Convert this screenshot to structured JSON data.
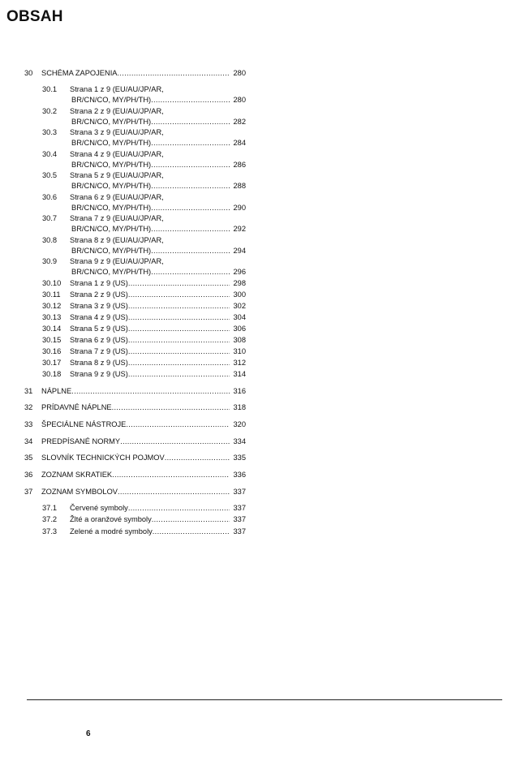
{
  "title": "OBSAH",
  "entries": [
    {
      "num": "30",
      "text": "SCHÉMA ZAPOJENIA",
      "page": "280",
      "level": 1
    },
    {
      "num": "30.1",
      "text": "Strana 1 z 9 (EU/AU/JP/AR,",
      "text2": "BR/CN/CO, MY/PH/TH)",
      "page": "280",
      "level": 2
    },
    {
      "num": "30.2",
      "text": "Strana 2 z 9 (EU/AU/JP/AR,",
      "text2": "BR/CN/CO, MY/PH/TH)",
      "page": "282",
      "level": 2
    },
    {
      "num": "30.3",
      "text": "Strana 3 z 9 (EU/AU/JP/AR,",
      "text2": "BR/CN/CO, MY/PH/TH)",
      "page": "284",
      "level": 2
    },
    {
      "num": "30.4",
      "text": "Strana 4 z 9 (EU/AU/JP/AR,",
      "text2": "BR/CN/CO, MY/PH/TH)",
      "page": "286",
      "level": 2
    },
    {
      "num": "30.5",
      "text": "Strana 5 z 9 (EU/AU/JP/AR,",
      "text2": "BR/CN/CO, MY/PH/TH)",
      "page": "288",
      "level": 2
    },
    {
      "num": "30.6",
      "text": "Strana 6 z 9 (EU/AU/JP/AR,",
      "text2": "BR/CN/CO, MY/PH/TH)",
      "page": "290",
      "level": 2
    },
    {
      "num": "30.7",
      "text": "Strana 7 z 9 (EU/AU/JP/AR,",
      "text2": "BR/CN/CO, MY/PH/TH)",
      "page": "292",
      "level": 2
    },
    {
      "num": "30.8",
      "text": "Strana 8 z 9 (EU/AU/JP/AR,",
      "text2": "BR/CN/CO, MY/PH/TH)",
      "page": "294",
      "level": 2
    },
    {
      "num": "30.9",
      "text": "Strana 9 z 9 (EU/AU/JP/AR,",
      "text2": "BR/CN/CO, MY/PH/TH)",
      "page": "296",
      "level": 2
    },
    {
      "num": "30.10",
      "text": "Strana 1 z 9 (US)",
      "page": "298",
      "level": 2
    },
    {
      "num": "30.11",
      "text": "Strana 2 z 9 (US)",
      "page": "300",
      "level": 2
    },
    {
      "num": "30.12",
      "text": "Strana 3 z 9 (US)",
      "page": "302",
      "level": 2
    },
    {
      "num": "30.13",
      "text": "Strana 4 z 9 (US)",
      "page": "304",
      "level": 2
    },
    {
      "num": "30.14",
      "text": "Strana 5 z 9 (US)",
      "page": "306",
      "level": 2
    },
    {
      "num": "30.15",
      "text": "Strana 6 z 9 (US)",
      "page": "308",
      "level": 2
    },
    {
      "num": "30.16",
      "text": "Strana 7 z 9 (US)",
      "page": "310",
      "level": 2
    },
    {
      "num": "30.17",
      "text": "Strana 8 z 9 (US)",
      "page": "312",
      "level": 2
    },
    {
      "num": "30.18",
      "text": "Strana 9 z 9 (US)",
      "page": "314",
      "level": 2
    },
    {
      "num": "31",
      "text": "NÁPLNE",
      "page": "316",
      "level": 1
    },
    {
      "num": "32",
      "text": "PRÍDAVNÉ NÁPLNE",
      "page": "318",
      "level": 1
    },
    {
      "num": "33",
      "text": "ŠPECIÁLNE NÁSTROJE",
      "page": "320",
      "level": 1
    },
    {
      "num": "34",
      "text": "PREDPÍSANÉ NORMY",
      "page": "334",
      "level": 1
    },
    {
      "num": "35",
      "text": "SLOVNÍK  TECHNICKÝCH  POJMOV",
      "page": "335",
      "level": 1
    },
    {
      "num": "36",
      "text": "ZOZNAM  SKRATIEK",
      "page": "336",
      "level": 1
    },
    {
      "num": "37",
      "text": "ZOZNAM  SYMBOLOV",
      "page": "337",
      "level": 1
    },
    {
      "num": "37.1",
      "text": "Červené symboly",
      "page": "337",
      "level": 2
    },
    {
      "num": "37.2",
      "text": "Žlté a oranžové symboly",
      "page": "337",
      "level": 2
    },
    {
      "num": "37.3",
      "text": "Zelené  a  modré  symboly",
      "page": "337",
      "level": 2
    }
  ],
  "footer": {
    "page_number": "6"
  }
}
